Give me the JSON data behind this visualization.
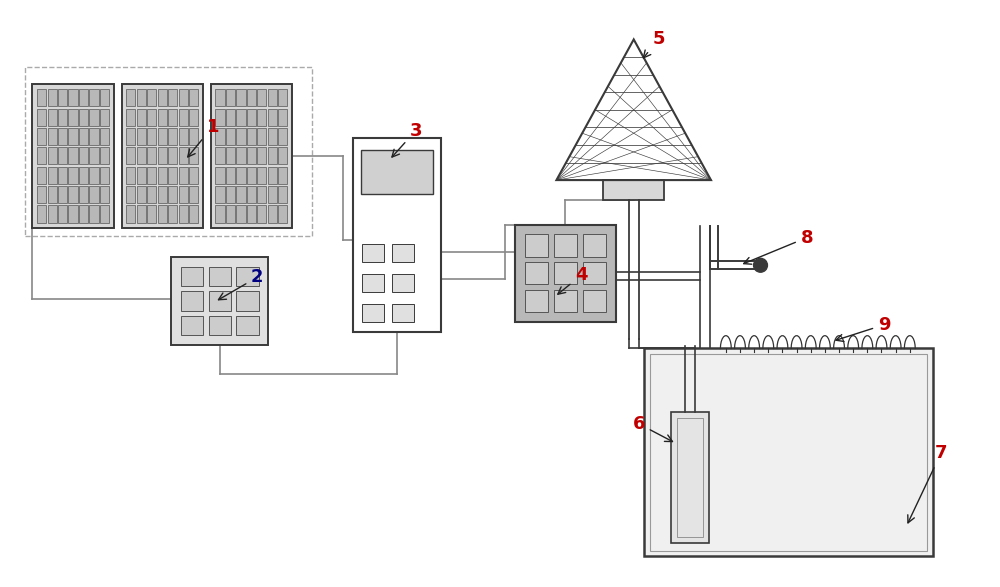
{
  "bg_color": "#ffffff",
  "line_color": "#3a3a3a",
  "fig_width": 10.0,
  "fig_height": 5.87,
  "label_red": "#c00000",
  "label_blue": "#000080",
  "wire_color": "#888888"
}
